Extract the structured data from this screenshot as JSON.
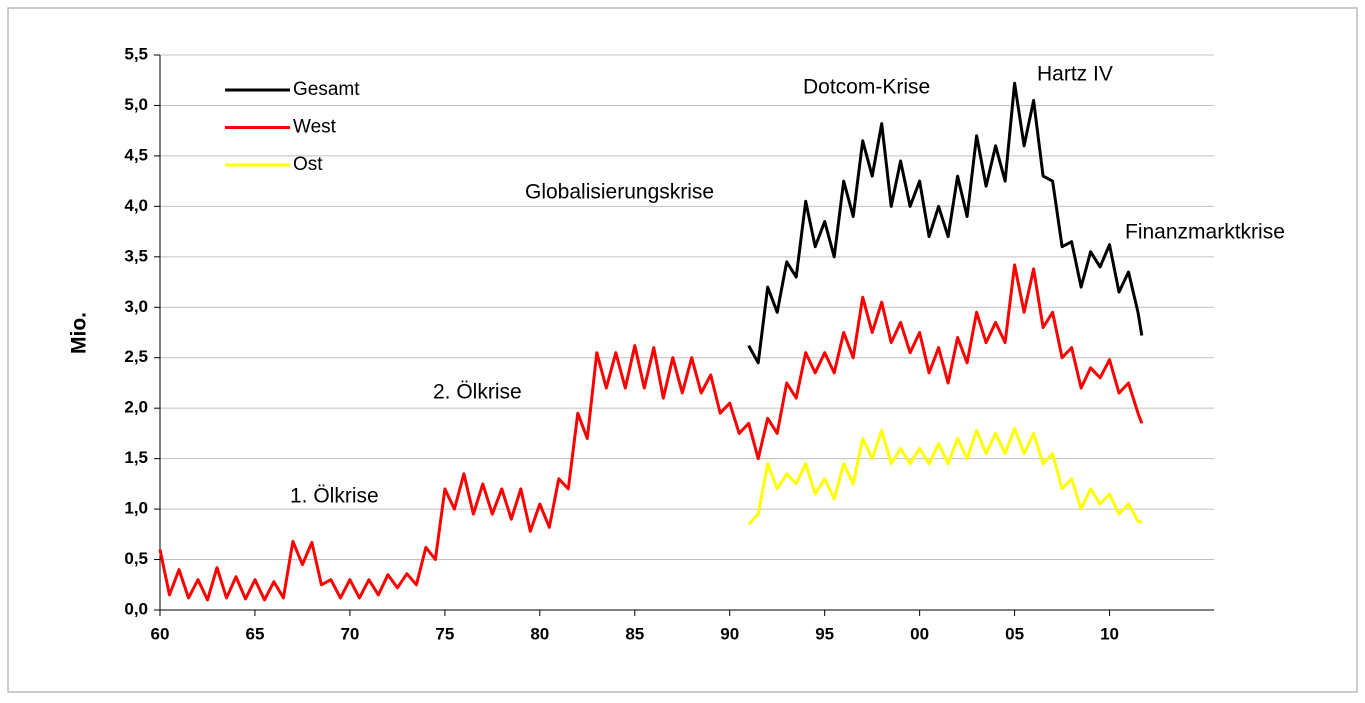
{
  "chart_data": {
    "type": "line",
    "ylabel": "Mio.",
    "annotations": [
      "1. Ölkrise",
      "2. Ölkrise",
      "Globalisierungskrise",
      "Dotcom-Krise",
      "Hartz IV",
      "Finanzmarktkrise"
    ],
    "x": [
      1960,
      1960.5,
      1961,
      1961.5,
      1962,
      1962.5,
      1963,
      1963.5,
      1964,
      1964.5,
      1965,
      1965.5,
      1966,
      1966.5,
      1967,
      1967.5,
      1968,
      1968.5,
      1969,
      1969.5,
      1970,
      1970.5,
      1971,
      1971.5,
      1972,
      1972.5,
      1973,
      1973.5,
      1974,
      1974.5,
      1975,
      1975.5,
      1976,
      1976.5,
      1977,
      1977.5,
      1978,
      1978.5,
      1979,
      1979.5,
      1980,
      1980.5,
      1981,
      1981.5,
      1982,
      1982.5,
      1983,
      1983.5,
      1984,
      1984.5,
      1985,
      1985.5,
      1986,
      1986.5,
      1987,
      1987.5,
      1988,
      1988.5,
      1989,
      1989.5,
      1990,
      1990.5,
      1991,
      1991.5,
      1992,
      1992.5,
      1993,
      1993.5,
      1994,
      1994.5,
      1995,
      1995.5,
      1996,
      1996.5,
      1997,
      1997.5,
      1998,
      1998.5,
      1999,
      1999.5,
      2000,
      2000.5,
      2001,
      2001.5,
      2002,
      2002.5,
      2003,
      2003.5,
      2004,
      2004.5,
      2005,
      2005.5,
      2006,
      2006.5,
      2007,
      2007.5,
      2008,
      2008.5,
      2009,
      2009.5,
      2010,
      2010.5,
      2011,
      2011.5,
      2011.7
    ],
    "series": [
      {
        "name": "Gesamt",
        "color": "#000000",
        "values": [
          null,
          null,
          null,
          null,
          null,
          null,
          null,
          null,
          null,
          null,
          null,
          null,
          null,
          null,
          null,
          null,
          null,
          null,
          null,
          null,
          null,
          null,
          null,
          null,
          null,
          null,
          null,
          null,
          null,
          null,
          null,
          null,
          null,
          null,
          null,
          null,
          null,
          null,
          null,
          null,
          null,
          null,
          null,
          null,
          null,
          null,
          null,
          null,
          null,
          null,
          null,
          null,
          null,
          null,
          null,
          null,
          null,
          null,
          null,
          null,
          null,
          null,
          2.62,
          2.45,
          3.2,
          2.95,
          3.45,
          3.3,
          4.05,
          3.6,
          3.85,
          3.5,
          4.25,
          3.9,
          4.65,
          4.3,
          4.82,
          4.0,
          4.45,
          4.0,
          4.25,
          3.7,
          4.0,
          3.7,
          4.3,
          3.9,
          4.7,
          4.2,
          4.6,
          4.25,
          5.22,
          4.6,
          5.05,
          4.3,
          4.25,
          3.6,
          3.65,
          3.2,
          3.55,
          3.4,
          3.62,
          3.15,
          3.35,
          2.95,
          2.72
        ]
      },
      {
        "name": "West",
        "color": "#ff0000",
        "values": [
          0.6,
          0.15,
          0.4,
          0.12,
          0.3,
          0.1,
          0.42,
          0.12,
          0.33,
          0.11,
          0.3,
          0.1,
          0.28,
          0.12,
          0.68,
          0.45,
          0.67,
          0.25,
          0.3,
          0.12,
          0.3,
          0.12,
          0.3,
          0.15,
          0.35,
          0.22,
          0.36,
          0.25,
          0.62,
          0.5,
          1.2,
          1.0,
          1.35,
          0.95,
          1.25,
          0.95,
          1.2,
          0.9,
          1.2,
          0.78,
          1.05,
          0.82,
          1.3,
          1.2,
          1.95,
          1.7,
          2.55,
          2.2,
          2.55,
          2.2,
          2.62,
          2.2,
          2.6,
          2.1,
          2.5,
          2.15,
          2.5,
          2.15,
          2.33,
          1.95,
          2.05,
          1.75,
          1.85,
          1.5,
          1.9,
          1.75,
          2.25,
          2.1,
          2.55,
          2.35,
          2.55,
          2.35,
          2.75,
          2.5,
          3.1,
          2.75,
          3.05,
          2.65,
          2.85,
          2.55,
          2.75,
          2.35,
          2.6,
          2.25,
          2.7,
          2.45,
          2.95,
          2.65,
          2.85,
          2.65,
          3.42,
          2.95,
          3.38,
          2.8,
          2.95,
          2.5,
          2.6,
          2.2,
          2.4,
          2.3,
          2.48,
          2.15,
          2.25,
          1.95,
          1.85
        ]
      },
      {
        "name": "Ost",
        "color": "#ffff00",
        "values": [
          null,
          null,
          null,
          null,
          null,
          null,
          null,
          null,
          null,
          null,
          null,
          null,
          null,
          null,
          null,
          null,
          null,
          null,
          null,
          null,
          null,
          null,
          null,
          null,
          null,
          null,
          null,
          null,
          null,
          null,
          null,
          null,
          null,
          null,
          null,
          null,
          null,
          null,
          null,
          null,
          null,
          null,
          null,
          null,
          null,
          null,
          null,
          null,
          null,
          null,
          null,
          null,
          null,
          null,
          null,
          null,
          null,
          null,
          null,
          null,
          null,
          null,
          0.85,
          0.95,
          1.45,
          1.2,
          1.35,
          1.25,
          1.45,
          1.15,
          1.3,
          1.1,
          1.45,
          1.25,
          1.7,
          1.5,
          1.78,
          1.45,
          1.6,
          1.45,
          1.6,
          1.45,
          1.65,
          1.45,
          1.7,
          1.5,
          1.78,
          1.55,
          1.75,
          1.55,
          1.8,
          1.55,
          1.75,
          1.45,
          1.55,
          1.2,
          1.3,
          1.0,
          1.2,
          1.05,
          1.15,
          0.95,
          1.05,
          0.88,
          0.87
        ]
      }
    ],
    "xlim": [
      1960,
      2015.5
    ],
    "xticks": [
      {
        "value": 1960,
        "label": "60"
      },
      {
        "value": 1965,
        "label": "65"
      },
      {
        "value": 1970,
        "label": "70"
      },
      {
        "value": 1975,
        "label": "75"
      },
      {
        "value": 1980,
        "label": "80"
      },
      {
        "value": 1985,
        "label": "85"
      },
      {
        "value": 1990,
        "label": "90"
      },
      {
        "value": 1995,
        "label": "95"
      },
      {
        "value": 2000,
        "label": "00"
      },
      {
        "value": 2005,
        "label": "05"
      },
      {
        "value": 2010,
        "label": "10"
      }
    ],
    "ylim": [
      0,
      5.5
    ],
    "yticks": [
      {
        "value": 0,
        "label": "0,0"
      },
      {
        "value": 0.5,
        "label": "0,5"
      },
      {
        "value": 1,
        "label": "1,0"
      },
      {
        "value": 1.5,
        "label": "1,5"
      },
      {
        "value": 2,
        "label": "2,0"
      },
      {
        "value": 2.5,
        "label": "2,5"
      },
      {
        "value": 3,
        "label": "3,0"
      },
      {
        "value": 3.5,
        "label": "3,5"
      },
      {
        "value": 4,
        "label": "4,0"
      },
      {
        "value": 4.5,
        "label": "4,5"
      },
      {
        "value": 5,
        "label": "5,0"
      },
      {
        "value": 5.5,
        "label": "5,5"
      }
    ],
    "grid": true,
    "legend": "upper left"
  }
}
